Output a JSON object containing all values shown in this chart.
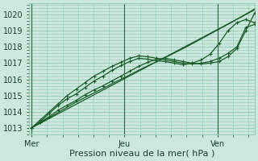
{
  "bg_color": "#cce8dc",
  "grid_color": "#99ccbb",
  "line_color": "#1a5c2a",
  "marker_color": "#1a5c2a",
  "xlabel": "Pression niveau de la mer( hPa )",
  "xlabel_fontsize": 8,
  "tick_fontsize": 7,
  "yticks": [
    1013,
    1014,
    1015,
    1016,
    1017,
    1018,
    1019,
    1020
  ],
  "ylim": [
    1012.6,
    1020.7
  ],
  "day_labels": [
    "Mer",
    "Jeu",
    "Ven"
  ],
  "day_positions": [
    0.0,
    0.4167,
    0.8333
  ],
  "xlim": [
    -0.01,
    1.0
  ],
  "series": [
    {
      "x": [
        0.0,
        0.1,
        0.2,
        0.3,
        0.4,
        0.5,
        0.6,
        0.7,
        0.8,
        0.9,
        1.0
      ],
      "y": [
        1013.0,
        1013.73,
        1014.46,
        1015.19,
        1015.92,
        1016.65,
        1017.38,
        1018.11,
        1018.84,
        1019.57,
        1020.3
      ]
    },
    {
      "x": [
        0.0,
        0.1,
        0.2,
        0.3,
        0.4,
        0.5,
        0.6,
        0.7,
        0.8,
        0.9,
        1.0
      ],
      "y": [
        1013.0,
        1013.8,
        1014.6,
        1015.3,
        1016.0,
        1016.7,
        1017.35,
        1018.05,
        1018.8,
        1019.55,
        1020.35
      ]
    },
    {
      "x": [
        0.0,
        0.04,
        0.08,
        0.12,
        0.16,
        0.2,
        0.24,
        0.28,
        0.32,
        0.36,
        0.4,
        0.44,
        0.48,
        0.52,
        0.56,
        0.6,
        0.64,
        0.68,
        0.72,
        0.76,
        0.8,
        0.84,
        0.88,
        0.92,
        0.96,
        1.0
      ],
      "y": [
        1013.0,
        1013.4,
        1013.9,
        1014.4,
        1014.8,
        1015.1,
        1015.5,
        1015.9,
        1016.2,
        1016.55,
        1016.85,
        1017.1,
        1017.3,
        1017.25,
        1017.15,
        1017.1,
        1017.0,
        1016.9,
        1017.0,
        1017.2,
        1017.55,
        1018.2,
        1019.0,
        1019.5,
        1019.7,
        1019.5
      ]
    },
    {
      "x": [
        0.0,
        0.04,
        0.08,
        0.12,
        0.16,
        0.2,
        0.24,
        0.28,
        0.32,
        0.36,
        0.4,
        0.44,
        0.48,
        0.52,
        0.56,
        0.6,
        0.64,
        0.68,
        0.72,
        0.76,
        0.8,
        0.84,
        0.88,
        0.92,
        0.96,
        1.0
      ],
      "y": [
        1013.0,
        1013.5,
        1014.0,
        1014.5,
        1015.0,
        1015.4,
        1015.8,
        1016.2,
        1016.5,
        1016.8,
        1017.05,
        1017.3,
        1017.45,
        1017.4,
        1017.3,
        1017.2,
        1017.1,
        1017.0,
        1016.95,
        1017.0,
        1017.1,
        1017.3,
        1017.6,
        1018.0,
        1019.2,
        1019.4
      ]
    },
    {
      "x": [
        0.0,
        0.04,
        0.08,
        0.12,
        0.16,
        0.2,
        0.24,
        0.28,
        0.32,
        0.36,
        0.4,
        0.44,
        0.48,
        0.52,
        0.56,
        0.6,
        0.64,
        0.68,
        0.72,
        0.76,
        0.8,
        0.84,
        0.88,
        0.92,
        0.96,
        1.0
      ],
      "y": [
        1013.0,
        1013.35,
        1013.7,
        1014.1,
        1014.4,
        1014.7,
        1015.05,
        1015.35,
        1015.6,
        1015.9,
        1016.2,
        1016.5,
        1016.8,
        1017.05,
        1017.25,
        1017.3,
        1017.2,
        1017.1,
        1017.0,
        1016.95,
        1017.0,
        1017.1,
        1017.4,
        1017.9,
        1019.0,
        1020.1
      ]
    }
  ]
}
